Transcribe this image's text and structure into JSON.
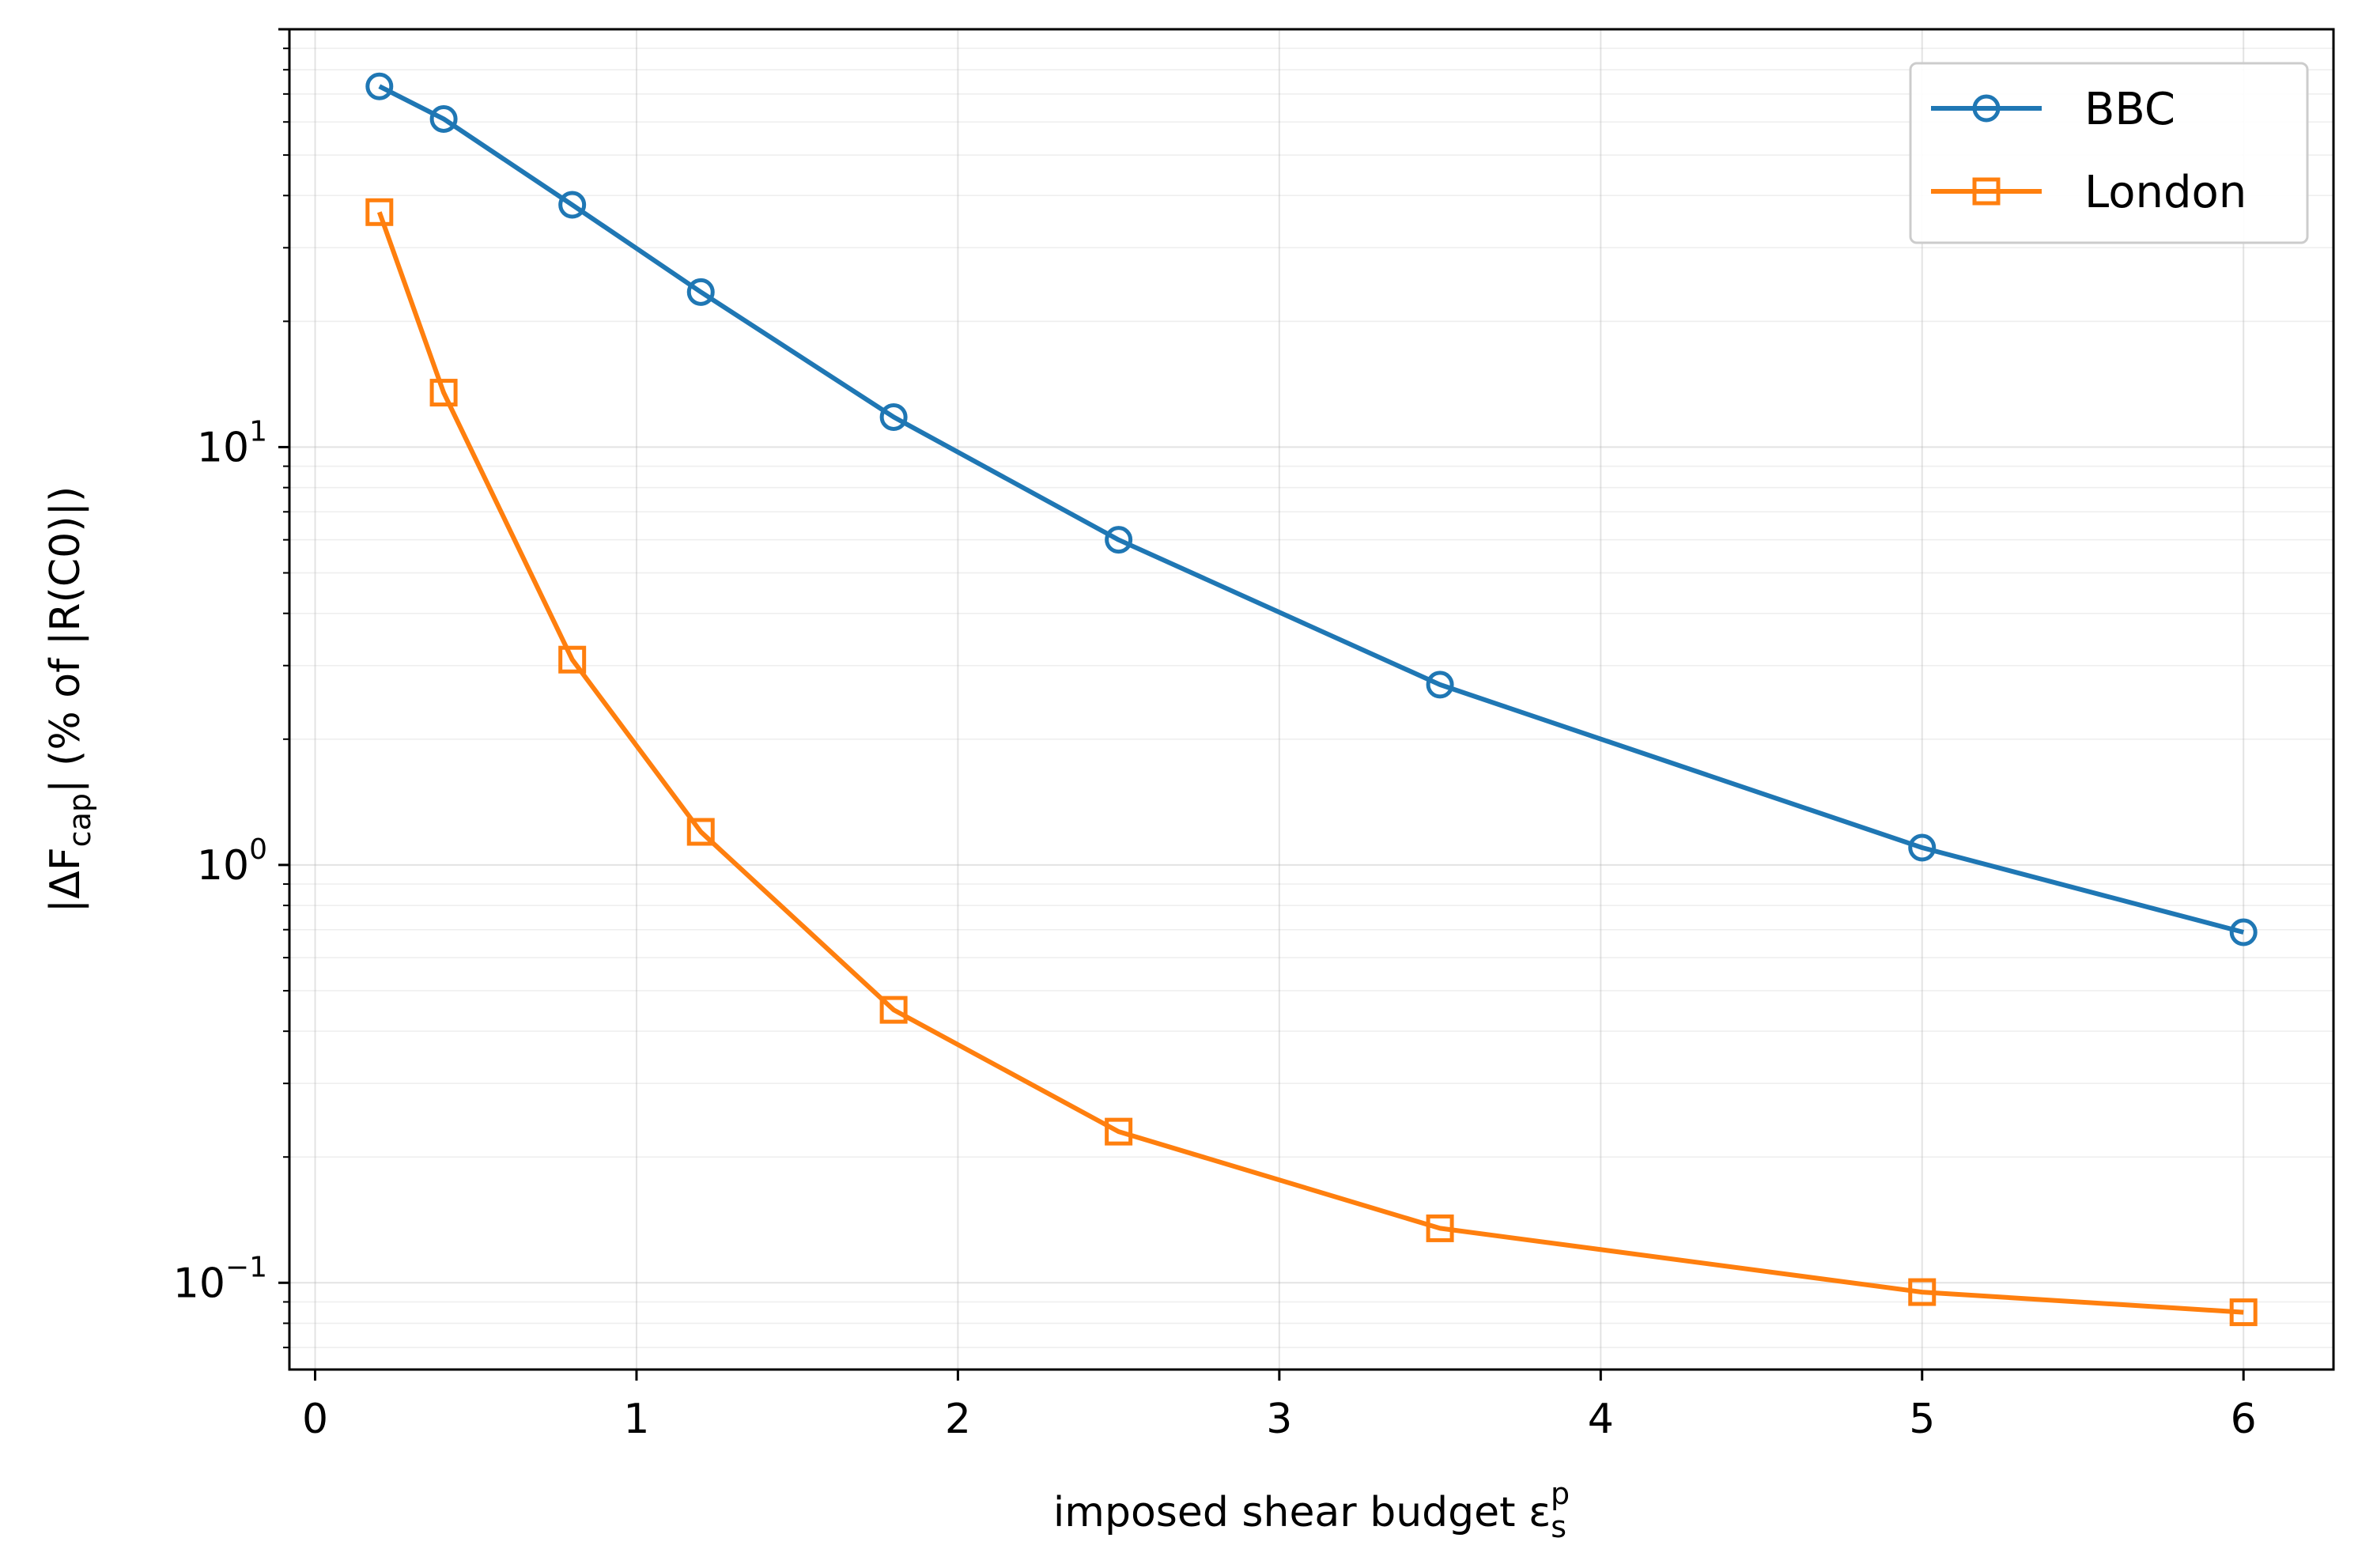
{
  "chart_data": {
    "type": "line",
    "title": "",
    "xlabel": "imposed shear budget ε",
    "xlabel_sub": "s",
    "xlabel_sup": "p",
    "ylabel_prefix": "|ΔF",
    "ylabel_sub": "cap",
    "ylabel_suffix": "|  (% of |R(C0)|)",
    "x_scale": "linear",
    "y_scale": "log",
    "xlim": [
      -0.08,
      6.28
    ],
    "ylim": [
      0.062,
      100
    ],
    "x_ticks": [
      0,
      1,
      2,
      3,
      4,
      5,
      6
    ],
    "x_tick_labels": [
      "0",
      "1",
      "2",
      "3",
      "4",
      "5",
      "6"
    ],
    "y_ticks": [
      0.1,
      1,
      10
    ],
    "y_tick_labels": [
      {
        "base": "10",
        "exp": "−1"
      },
      {
        "base": "10",
        "exp": "0"
      },
      {
        "base": "10",
        "exp": "1"
      }
    ],
    "grid": true,
    "legend_position": "top-right",
    "x": [
      0.2,
      0.4,
      0.8,
      1.2,
      1.8,
      2.5,
      3.5,
      5.0,
      6.0
    ],
    "series": [
      {
        "name": "BBC",
        "color": "#1f77b4",
        "marker": "circle",
        "values": [
          73,
          61,
          38,
          23.5,
          11.8,
          6.0,
          2.7,
          1.1,
          0.69
        ]
      },
      {
        "name": "London",
        "color": "#ff7f0e",
        "marker": "square",
        "values": [
          36.5,
          13.5,
          3.1,
          1.2,
          0.45,
          0.23,
          0.135,
          0.095,
          0.085
        ]
      }
    ]
  }
}
